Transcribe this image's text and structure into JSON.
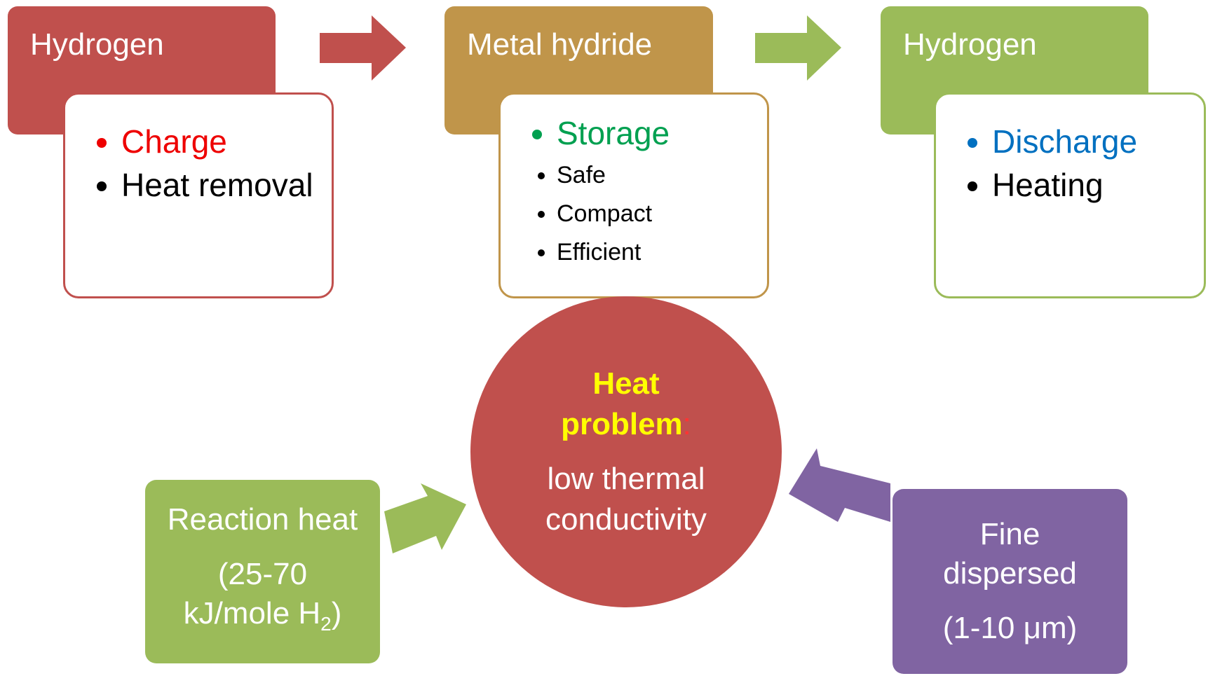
{
  "nodes": [
    {
      "title": "Hydrogen",
      "items": [
        "Charge",
        "Heat removal"
      ]
    },
    {
      "title": "Metal hydride",
      "items": [
        "Storage",
        "Safe",
        "Compact",
        "Efficient"
      ]
    },
    {
      "title": "Hydrogen",
      "items": [
        "Discharge",
        "Heating"
      ]
    }
  ],
  "center": {
    "title": "Heat problem",
    "colon": ":",
    "text": "low thermal conductivity"
  },
  "left": {
    "title": "Reaction heat",
    "text": "(25-70 kJ/mole H",
    "sub": "2",
    "close": ")"
  },
  "right": {
    "title": "Fine dispersed",
    "text": "(1-10 μm)"
  }
}
